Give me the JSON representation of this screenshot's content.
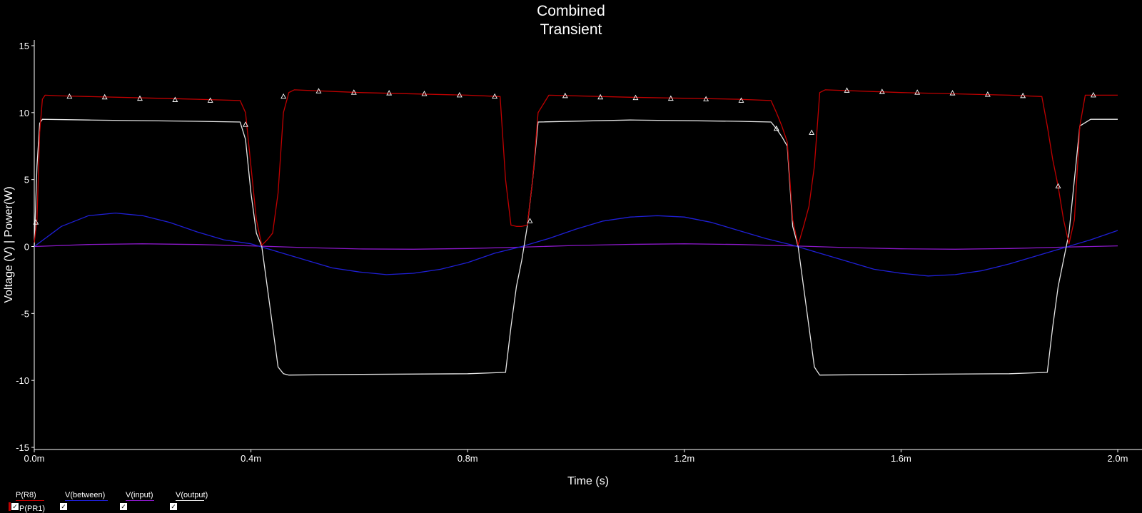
{
  "chart_data": {
    "type": "line",
    "title_lines": [
      "Combined",
      "Transient"
    ],
    "xlabel": "Time (s)",
    "ylabel": "Voltage (V) | Power(W)",
    "xlim": [
      0,
      2.0
    ],
    "ylim": [
      -15,
      15
    ],
    "x_unit": "ms",
    "xticks": [
      0,
      0.4,
      0.8,
      1.2,
      1.6,
      2.0
    ],
    "xtick_labels": [
      "0.0m",
      "0.4m",
      "0.8m",
      "1.2m",
      "1.6m",
      "2.0m"
    ],
    "yticks": [
      15,
      10,
      5,
      0,
      -5,
      -10,
      -15
    ],
    "ytick_labels": [
      "15",
      "10",
      "5",
      "0",
      "-5",
      "-10",
      "-15"
    ],
    "grid": false,
    "background": "#000000",
    "series": [
      {
        "name": "P(R8)",
        "color": "#c00000",
        "marker": "triangle",
        "x": [
          0,
          0.005,
          0.01,
          0.015,
          0.02,
          0.05,
          0.1,
          0.2,
          0.3,
          0.38,
          0.39,
          0.4,
          0.41,
          0.42,
          0.43,
          0.44,
          0.45,
          0.46,
          0.47,
          0.48,
          0.6,
          0.8,
          0.86,
          0.87,
          0.88,
          0.89,
          0.9,
          0.91,
          0.92,
          0.93,
          0.95,
          1.1,
          1.3,
          1.36,
          1.37,
          1.38,
          1.39,
          1.4,
          1.41,
          1.42,
          1.43,
          1.44,
          1.45,
          1.46,
          1.6,
          1.8,
          1.86,
          1.87,
          1.88,
          1.89,
          1.9,
          1.91,
          1.92,
          1.93,
          1.94,
          1.95,
          2.0
        ],
        "y": [
          0.3,
          2.0,
          8.5,
          11.0,
          11.3,
          11.25,
          11.2,
          11.1,
          11.0,
          10.9,
          10.0,
          6.0,
          2.0,
          0.1,
          0.5,
          1.0,
          4.0,
          10.0,
          11.5,
          11.7,
          11.5,
          11.3,
          11.2,
          5.0,
          1.6,
          1.5,
          1.5,
          1.6,
          5.0,
          10.0,
          11.3,
          11.15,
          11.0,
          10.9,
          10.0,
          9.0,
          7.8,
          2.0,
          0.1,
          1.5,
          3.0,
          6.0,
          11.5,
          11.7,
          11.5,
          11.3,
          11.2,
          9.0,
          6.5,
          4.5,
          2.0,
          0.2,
          2.0,
          9.0,
          11.3,
          11.3,
          11.3
        ],
        "markers_x": [
          0.003,
          0.065,
          0.13,
          0.195,
          0.26,
          0.325,
          0.39,
          0.46,
          0.525,
          0.59,
          0.655,
          0.72,
          0.785,
          0.85,
          0.915,
          0.98,
          1.045,
          1.11,
          1.175,
          1.24,
          1.305,
          1.37,
          1.435,
          1.5,
          1.565,
          1.63,
          1.695,
          1.76,
          1.825,
          1.89,
          1.955
        ],
        "markers_y": [
          1.8,
          11.2,
          11.15,
          11.05,
          10.95,
          10.9,
          9.1,
          11.2,
          11.6,
          11.5,
          11.45,
          11.4,
          11.3,
          11.2,
          1.9,
          11.25,
          11.15,
          11.1,
          11.05,
          11.0,
          10.9,
          8.8,
          8.5,
          11.65,
          11.55,
          11.5,
          11.45,
          11.35,
          11.25,
          4.5,
          11.3
        ]
      },
      {
        "name": "V(between)",
        "color": "#1f1fd6",
        "x": [
          0,
          0.05,
          0.1,
          0.15,
          0.2,
          0.25,
          0.3,
          0.35,
          0.4,
          0.45,
          0.5,
          0.55,
          0.6,
          0.65,
          0.7,
          0.75,
          0.8,
          0.85,
          0.9,
          0.95,
          1.0,
          1.05,
          1.1,
          1.15,
          1.2,
          1.25,
          1.3,
          1.35,
          1.4,
          1.45,
          1.5,
          1.55,
          1.6,
          1.65,
          1.7,
          1.75,
          1.8,
          1.85,
          1.9,
          1.95,
          2.0
        ],
        "y": [
          0.0,
          1.5,
          2.3,
          2.5,
          2.3,
          1.8,
          1.1,
          0.5,
          0.2,
          -0.4,
          -1.0,
          -1.6,
          -1.9,
          -2.1,
          -2.0,
          -1.7,
          -1.2,
          -0.5,
          0.0,
          0.6,
          1.3,
          1.9,
          2.2,
          2.3,
          2.2,
          1.8,
          1.2,
          0.6,
          0.1,
          -0.5,
          -1.1,
          -1.7,
          -2.0,
          -2.2,
          -2.1,
          -1.8,
          -1.3,
          -0.7,
          -0.1,
          0.5,
          1.2
        ]
      },
      {
        "name": "V(input)",
        "color": "#8a18c8",
        "x": [
          0,
          0.1,
          0.2,
          0.3,
          0.4,
          0.5,
          0.6,
          0.7,
          0.8,
          0.9,
          1.0,
          1.1,
          1.2,
          1.3,
          1.4,
          1.5,
          1.6,
          1.7,
          1.8,
          1.9,
          2.0
        ],
        "y": [
          0.0,
          0.15,
          0.2,
          0.15,
          0.05,
          -0.08,
          -0.18,
          -0.2,
          -0.15,
          -0.05,
          0.08,
          0.16,
          0.2,
          0.15,
          0.05,
          -0.08,
          -0.17,
          -0.2,
          -0.15,
          -0.05,
          0.05
        ]
      },
      {
        "name": "V(output)",
        "color": "#e6e6e6",
        "x": [
          0,
          0.005,
          0.01,
          0.015,
          0.1,
          0.2,
          0.3,
          0.38,
          0.39,
          0.4,
          0.41,
          0.42,
          0.43,
          0.44,
          0.45,
          0.46,
          0.47,
          0.6,
          0.8,
          0.87,
          0.88,
          0.89,
          0.9,
          0.91,
          0.92,
          0.93,
          1.1,
          1.3,
          1.36,
          1.37,
          1.38,
          1.39,
          1.4,
          1.41,
          1.42,
          1.43,
          1.44,
          1.45,
          1.6,
          1.8,
          1.87,
          1.88,
          1.89,
          1.9,
          1.91,
          1.92,
          1.93,
          1.95,
          2.0
        ],
        "y": [
          0.0,
          6.0,
          9.2,
          9.5,
          9.45,
          9.4,
          9.35,
          9.3,
          8.0,
          4.0,
          1.0,
          0.0,
          -3.0,
          -6.0,
          -9.0,
          -9.5,
          -9.6,
          -9.55,
          -9.5,
          -9.4,
          -6.0,
          -3.0,
          -1.0,
          1.5,
          5.0,
          9.3,
          9.45,
          9.35,
          9.3,
          8.8,
          8.2,
          7.5,
          1.5,
          0.0,
          -3.0,
          -6.0,
          -9.0,
          -9.6,
          -9.55,
          -9.5,
          -9.4,
          -6.0,
          -3.0,
          -1.0,
          1.0,
          5.0,
          9.0,
          9.5,
          9.5
        ]
      }
    ],
    "legend": {
      "placement": "bottom-left",
      "entries": [
        {
          "label": "P(R8)",
          "sublabel": "P(PR1)",
          "color": "#c00000",
          "checked": true
        },
        {
          "label": "V(between)",
          "color": "#1f1fd6",
          "checked": true
        },
        {
          "label": "V(input)",
          "color": "#8a18c8",
          "checked": true
        },
        {
          "label": "V(output)",
          "color": "#e6e6e6",
          "checked": true
        }
      ]
    }
  }
}
